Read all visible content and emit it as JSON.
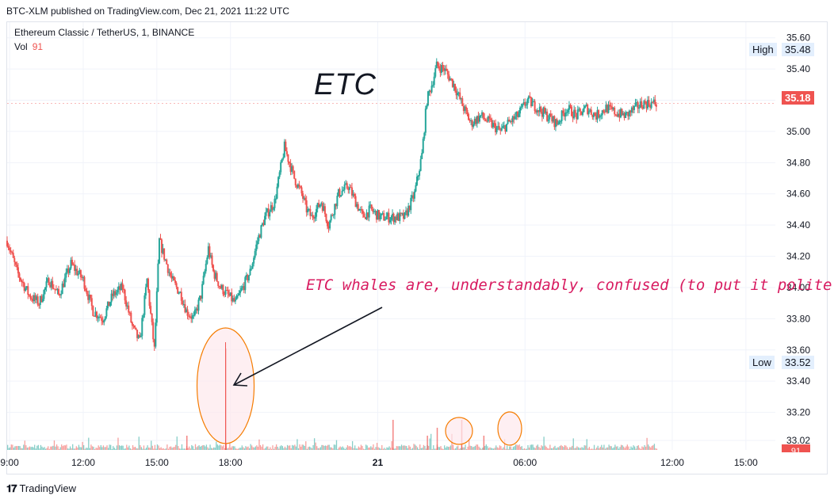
{
  "publisher": "BTC-XLM published on TradingView.com, Dec 21, 2021 11:22 UTC",
  "symbol_line": "Ethereum Classic / TetherUS, 1, BINANCE",
  "vol_label": "Vol",
  "vol_value": "91",
  "annotations": {
    "title": "ETC",
    "note": "ETC whales are, understandably, confused (to put it politely)."
  },
  "price_scale": {
    "high_label": "High",
    "high_value": "35.48",
    "low_label": "Low",
    "low_value": "33.52",
    "last_value": "35.18",
    "vol_tag": "91"
  },
  "footer": {
    "brand": "TradingView"
  },
  "colors": {
    "up": "#26a69a",
    "down": "#ef5350",
    "grid": "#f0f3fa",
    "annotation": "#d81b60",
    "highlight_stroke": "#f57c00",
    "highlight_fill": "#fde8ec"
  },
  "chart_data": {
    "type": "line",
    "title": "",
    "xlabel": "",
    "ylabel": "",
    "ylim": [
      33.0,
      35.7
    ],
    "y_ticks": [
      "35.60",
      "35.40",
      "35.20",
      "35.00",
      "34.80",
      "34.60",
      "34.40",
      "34.20",
      "34.00",
      "33.80",
      "33.60",
      "33.40",
      "33.20",
      "33.02"
    ],
    "x_ticks": [
      "9:00",
      "12:00",
      "15:00",
      "18:00",
      "21",
      "06:00",
      "12:00",
      "15:00"
    ],
    "x_tick_hours": [
      9,
      12,
      15,
      18,
      24,
      30,
      36,
      39
    ],
    "x_range_hours": [
      8.9,
      40.2
    ],
    "series": [
      {
        "hours": [
          8.9,
          9.3,
          9.8,
          10.2,
          10.6,
          11,
          11.5,
          12,
          12.4,
          12.8,
          13.2,
          13.6,
          14,
          14.3,
          14.6,
          14.9,
          15.1,
          15.3,
          15.6,
          16,
          16.2,
          16.5,
          16.8,
          17.1,
          17.3,
          17.6,
          17.9,
          18.2,
          18.5,
          18.8,
          19.1,
          19.4,
          19.8,
          20.2,
          20.6,
          20.9,
          21.1,
          21.3,
          21.7,
          22,
          22.4,
          22.8,
          23.1,
          23.4,
          23.7,
          24.1,
          24.4,
          24.8,
          25.1,
          25.5,
          25.8,
          26,
          26.2,
          26.4,
          26.7,
          27.1,
          27.5,
          27.8,
          28.2,
          28.6,
          29,
          29.3,
          29.7,
          30.1,
          30.5,
          30.9,
          31.3,
          31.7,
          32.1,
          32.5,
          32.9,
          33.3,
          33.7,
          34.1,
          34.5,
          34.8,
          35.1,
          35.4
        ],
        "values": [
          34.3,
          34.1,
          33.95,
          33.9,
          34.05,
          33.95,
          34.15,
          34.05,
          33.85,
          33.8,
          33.95,
          34.0,
          33.75,
          33.65,
          34.05,
          33.6,
          34.3,
          34.2,
          34.05,
          33.95,
          33.85,
          33.8,
          33.95,
          34.25,
          34.1,
          34.0,
          33.95,
          33.9,
          34.0,
          34.1,
          34.3,
          34.45,
          34.55,
          34.9,
          34.7,
          34.6,
          34.5,
          34.45,
          34.55,
          34.4,
          34.6,
          34.65,
          34.55,
          34.45,
          34.5,
          34.45,
          34.45,
          34.45,
          34.45,
          34.6,
          34.85,
          35.2,
          35.3,
          35.42,
          35.4,
          35.3,
          35.15,
          35.05,
          35.1,
          35.05,
          35.0,
          35.05,
          35.1,
          35.2,
          35.15,
          35.1,
          35.05,
          35.15,
          35.1,
          35.15,
          35.1,
          35.15,
          35.12,
          35.1,
          35.15,
          35.18,
          35.18,
          35.18
        ]
      }
    ],
    "volume_spike_hours": [
      16.2,
      17.8,
      24.6,
      26.0,
      26.4,
      27.4,
      28.3
    ]
  }
}
